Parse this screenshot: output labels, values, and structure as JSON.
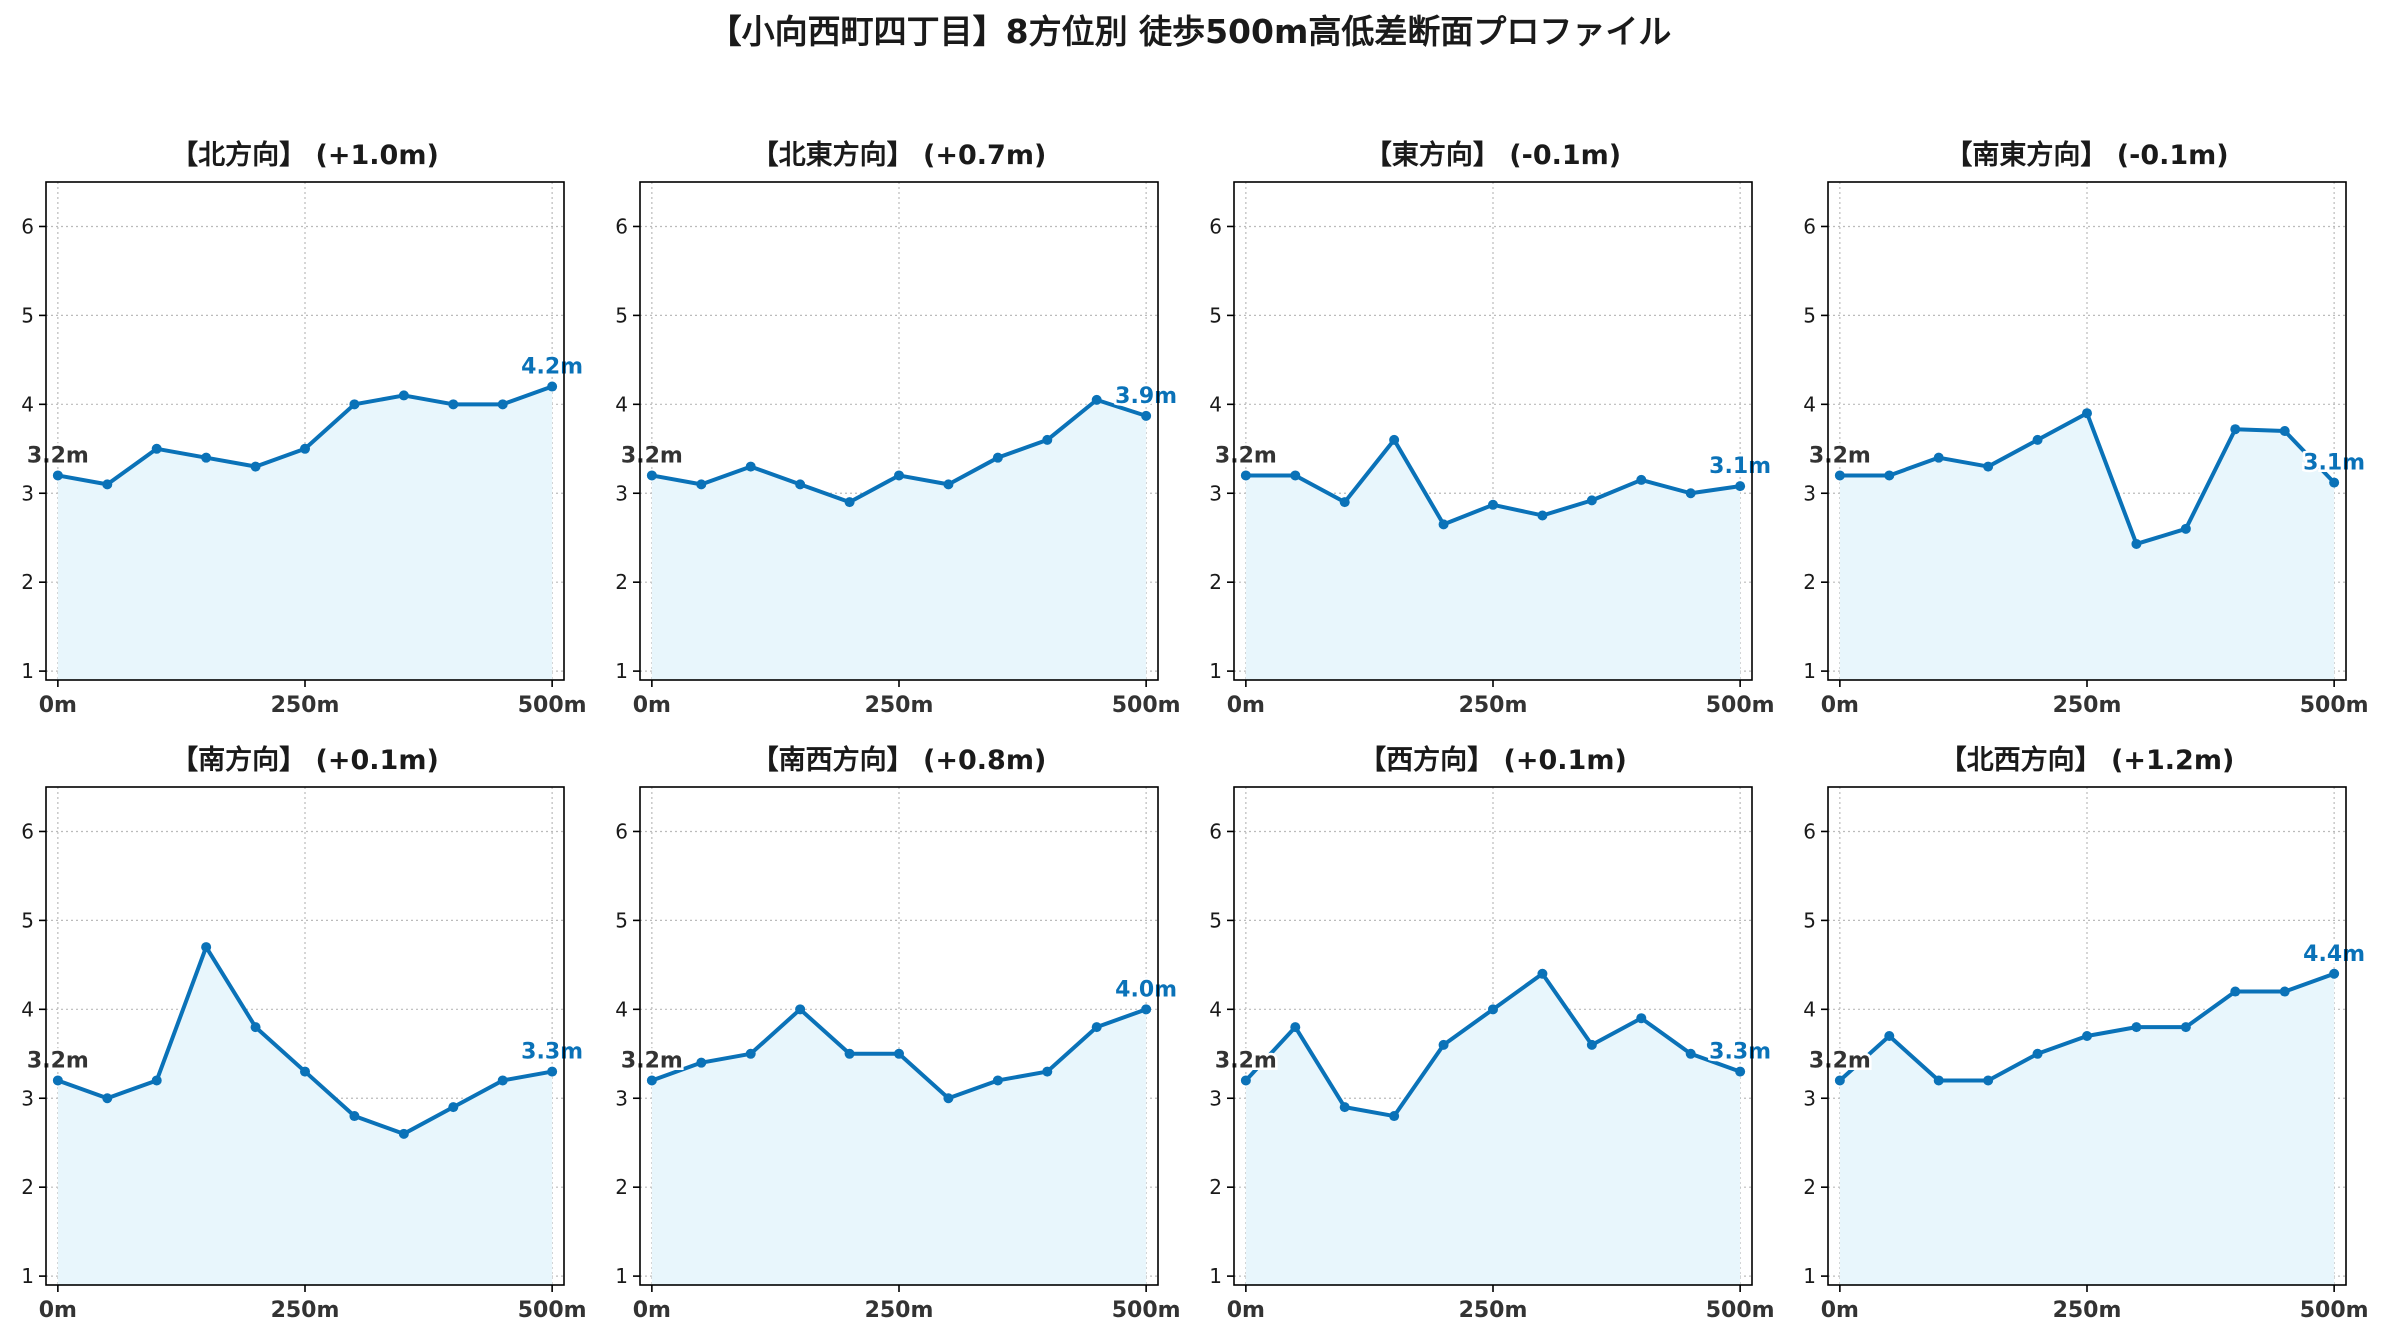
{
  "title": "【小向西町四丁目】8方位別 徒歩500m高低差断面プロファイル",
  "colors": {
    "line": "#0a72b8",
    "fill": "#e8f6fc",
    "grid": "#bbbbbb",
    "start_label": "#333333",
    "end_label": "#0a72b8"
  },
  "chart_data": [
    {
      "type": "area",
      "title": "【北方向】 (+1.0m)",
      "x": [
        0,
        50,
        100,
        150,
        200,
        250,
        300,
        350,
        400,
        450,
        500
      ],
      "y": [
        3.2,
        3.1,
        3.5,
        3.4,
        3.3,
        3.5,
        4.0,
        4.1,
        4.0,
        4.0,
        4.2
      ],
      "start_label": "3.2m",
      "end_label": "4.2m",
      "xlim": [
        -12,
        512
      ],
      "ylim": [
        0.9,
        6.5
      ],
      "xticks": [
        "0m",
        "250m",
        "500m"
      ],
      "yticks": [
        "1",
        "2",
        "3",
        "4",
        "5",
        "6"
      ],
      "grid": true
    },
    {
      "type": "area",
      "title": "【北東方向】 (+0.7m)",
      "x": [
        0,
        50,
        100,
        150,
        200,
        250,
        300,
        350,
        400,
        450,
        500
      ],
      "y": [
        3.2,
        3.1,
        3.3,
        3.1,
        2.9,
        3.2,
        3.1,
        3.4,
        3.6,
        4.05,
        3.87
      ],
      "start_label": "3.2m",
      "end_label": "3.9m",
      "xlim": [
        -12,
        512
      ],
      "ylim": [
        0.9,
        6.5
      ],
      "xticks": [
        "0m",
        "250m",
        "500m"
      ],
      "yticks": [
        "1",
        "2",
        "3",
        "4",
        "5",
        "6"
      ],
      "grid": true
    },
    {
      "type": "area",
      "title": "【東方向】 (-0.1m)",
      "x": [
        0,
        50,
        100,
        150,
        200,
        250,
        300,
        350,
        400,
        450,
        500
      ],
      "y": [
        3.2,
        3.2,
        2.9,
        3.6,
        2.65,
        2.87,
        2.75,
        2.92,
        3.15,
        3.0,
        3.08
      ],
      "start_label": "3.2m",
      "end_label": "3.1m",
      "xlim": [
        -12,
        512
      ],
      "ylim": [
        0.9,
        6.5
      ],
      "xticks": [
        "0m",
        "250m",
        "500m"
      ],
      "yticks": [
        "1",
        "2",
        "3",
        "4",
        "5",
        "6"
      ],
      "grid": true
    },
    {
      "type": "area",
      "title": "【南東方向】 (-0.1m)",
      "x": [
        0,
        50,
        100,
        150,
        200,
        250,
        300,
        350,
        400,
        450,
        500
      ],
      "y": [
        3.2,
        3.2,
        3.4,
        3.3,
        3.6,
        3.9,
        2.43,
        2.6,
        3.72,
        3.7,
        3.12
      ],
      "start_label": "3.2m",
      "end_label": "3.1m",
      "xlim": [
        -12,
        512
      ],
      "ylim": [
        0.9,
        6.5
      ],
      "xticks": [
        "0m",
        "250m",
        "500m"
      ],
      "yticks": [
        "1",
        "2",
        "3",
        "4",
        "5",
        "6"
      ],
      "grid": true
    },
    {
      "type": "area",
      "title": "【南方向】 (+0.1m)",
      "x": [
        0,
        50,
        100,
        150,
        200,
        250,
        300,
        350,
        400,
        450,
        500
      ],
      "y": [
        3.2,
        3.0,
        3.2,
        4.7,
        3.8,
        3.3,
        2.8,
        2.6,
        2.9,
        3.2,
        3.3
      ],
      "start_label": "3.2m",
      "end_label": "3.3m",
      "xlim": [
        -12,
        512
      ],
      "ylim": [
        0.9,
        6.5
      ],
      "xticks": [
        "0m",
        "250m",
        "500m"
      ],
      "yticks": [
        "1",
        "2",
        "3",
        "4",
        "5",
        "6"
      ],
      "grid": true
    },
    {
      "type": "area",
      "title": "【南西方向】 (+0.8m)",
      "x": [
        0,
        50,
        100,
        150,
        200,
        250,
        300,
        350,
        400,
        450,
        500
      ],
      "y": [
        3.2,
        3.4,
        3.5,
        4.0,
        3.5,
        3.5,
        3.0,
        3.2,
        3.3,
        3.8,
        4.0
      ],
      "start_label": "3.2m",
      "end_label": "4.0m",
      "xlim": [
        -12,
        512
      ],
      "ylim": [
        0.9,
        6.5
      ],
      "xticks": [
        "0m",
        "250m",
        "500m"
      ],
      "yticks": [
        "1",
        "2",
        "3",
        "4",
        "5",
        "6"
      ],
      "grid": true
    },
    {
      "type": "area",
      "title": "【西方向】 (+0.1m)",
      "x": [
        0,
        50,
        100,
        150,
        200,
        250,
        300,
        350,
        400,
        450,
        500
      ],
      "y": [
        3.2,
        3.8,
        2.9,
        2.8,
        3.6,
        4.0,
        4.4,
        3.6,
        3.9,
        3.5,
        3.3
      ],
      "start_label": "3.2m",
      "end_label": "3.3m",
      "xlim": [
        -12,
        512
      ],
      "ylim": [
        0.9,
        6.5
      ],
      "xticks": [
        "0m",
        "250m",
        "500m"
      ],
      "yticks": [
        "1",
        "2",
        "3",
        "4",
        "5",
        "6"
      ],
      "grid": true
    },
    {
      "type": "area",
      "title": "【北西方向】 (+1.2m)",
      "x": [
        0,
        50,
        100,
        150,
        200,
        250,
        300,
        350,
        400,
        450,
        500
      ],
      "y": [
        3.2,
        3.7,
        3.2,
        3.2,
        3.5,
        3.7,
        3.8,
        3.8,
        4.2,
        4.2,
        4.4
      ],
      "start_label": "3.2m",
      "end_label": "4.4m",
      "xlim": [
        -12,
        512
      ],
      "ylim": [
        0.9,
        6.5
      ],
      "xticks": [
        "0m",
        "250m",
        "500m"
      ],
      "yticks": [
        "1",
        "2",
        "3",
        "4",
        "5",
        "6"
      ],
      "grid": true
    }
  ]
}
